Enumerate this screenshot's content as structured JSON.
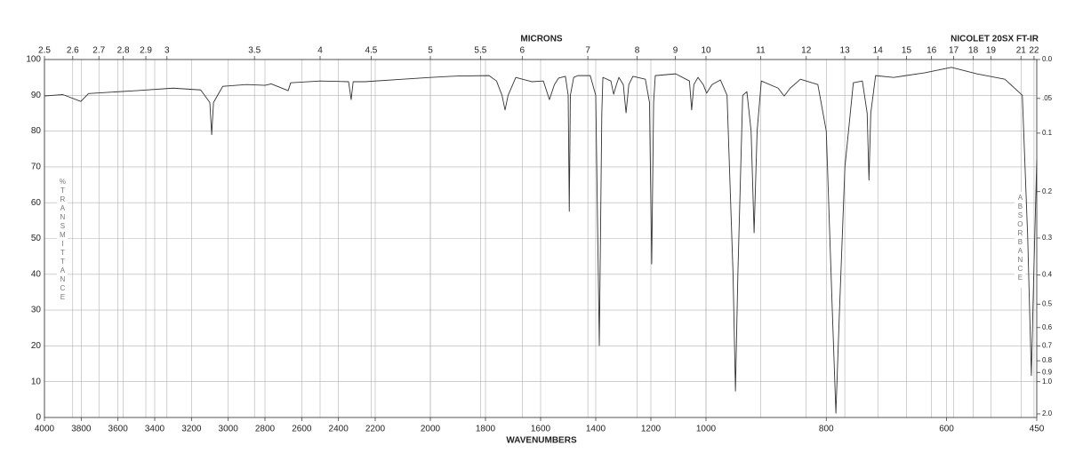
{
  "chart_data": {
    "type": "line",
    "title": "NICOLET 20SX FT-IR",
    "x_label": "WAVENUMBERS",
    "x2_label": "MICRONS",
    "y_label": "%TRANSMITTANCE",
    "y2_label": "ABSORBANCE",
    "color": "#333333",
    "grid": true,
    "xlim": [
      4000,
      450
    ],
    "xbreaks": [
      2200,
      1000
    ],
    "xticks": [
      4000,
      3800,
      3600,
      3400,
      3200,
      3000,
      2800,
      2600,
      2400,
      2200,
      2000,
      1800,
      1600,
      1400,
      1200,
      1000,
      800,
      600,
      450
    ],
    "x2ticks": [
      2.5,
      2.6,
      2.7,
      2.8,
      2.9,
      3,
      3.5,
      4,
      4.5,
      5,
      5.5,
      6,
      7,
      8,
      9,
      10,
      11,
      12,
      13,
      14,
      15,
      16,
      17,
      18,
      19,
      21,
      22
    ],
    "ylim": [
      0,
      100
    ],
    "yticks": [
      0,
      10,
      20,
      30,
      40,
      50,
      60,
      70,
      80,
      90,
      100
    ],
    "y2lim": [
      0,
      2
    ],
    "y2ticks": [
      {
        "value": 0,
        "label": "0.0"
      },
      {
        "value": 0.05,
        "label": ".05"
      },
      0.1,
      0.2,
      0.3,
      0.4,
      0.5,
      0.6,
      0.7,
      0.8,
      0.9,
      {
        "value": 1,
        "label": "1.0"
      },
      {
        "value": 2,
        "label": "2.0"
      }
    ],
    "x": [
      4000,
      3900,
      3802,
      3760,
      3500,
      3300,
      3150,
      3100,
      3090,
      3080,
      3030,
      2900,
      2800,
      2766,
      2674,
      2660,
      2500,
      2345,
      2331,
      2320,
      2258,
      2100,
      2000,
      1900,
      1787,
      1760,
      1740,
      1729,
      1718,
      1690,
      1632,
      1590,
      1568,
      1550,
      1535,
      1510,
      1500,
      1496,
      1492,
      1480,
      1465,
      1420,
      1400,
      1387,
      1378,
      1374,
      1345,
      1335,
      1325,
      1316,
      1300,
      1290,
      1280,
      1265,
      1220,
      1205,
      1197,
      1190,
      1184,
      1110,
      1060,
      1052,
      1044,
      1029,
      1010,
      999,
      990,
      976,
      965,
      955,
      951,
      947,
      939,
      932,
      925,
      920,
      915,
      908,
      880,
      870,
      860,
      843,
      814,
      800,
      790,
      784,
      778,
      769,
      755,
      740,
      732,
      729,
      726,
      718,
      688,
      636,
      592,
      550,
      503,
      474,
      465,
      459,
      455,
      450
    ],
    "values": [
      89.8,
      90.2,
      88.3,
      90.5,
      91.3,
      92,
      91.5,
      88,
      79,
      88,
      92.5,
      93,
      92.8,
      93.2,
      91.3,
      93.5,
      94,
      93.8,
      88.8,
      93.8,
      93.8,
      94.5,
      95,
      95.4,
      95.5,
      94,
      90,
      85.9,
      90,
      95,
      93.8,
      94,
      88.8,
      93,
      94.8,
      95.3,
      90,
      57.6,
      90,
      95,
      95.5,
      95.5,
      90,
      20.1,
      85,
      95,
      94,
      90.3,
      93,
      95,
      93,
      85.1,
      93,
      95.3,
      94.5,
      88,
      42.9,
      88,
      95.5,
      96,
      94,
      85.9,
      93,
      95,
      93,
      90.6,
      93,
      94.3,
      90,
      40,
      7.4,
      40,
      90,
      91,
      80,
      51.6,
      80,
      94,
      92,
      89.8,
      92,
      94.5,
      93,
      80,
      30,
      1.2,
      30,
      70,
      93.5,
      94,
      85,
      66.3,
      85,
      95.5,
      95,
      96.3,
      97.8,
      96,
      94.5,
      90,
      50,
      11.7,
      40,
      72
    ]
  }
}
